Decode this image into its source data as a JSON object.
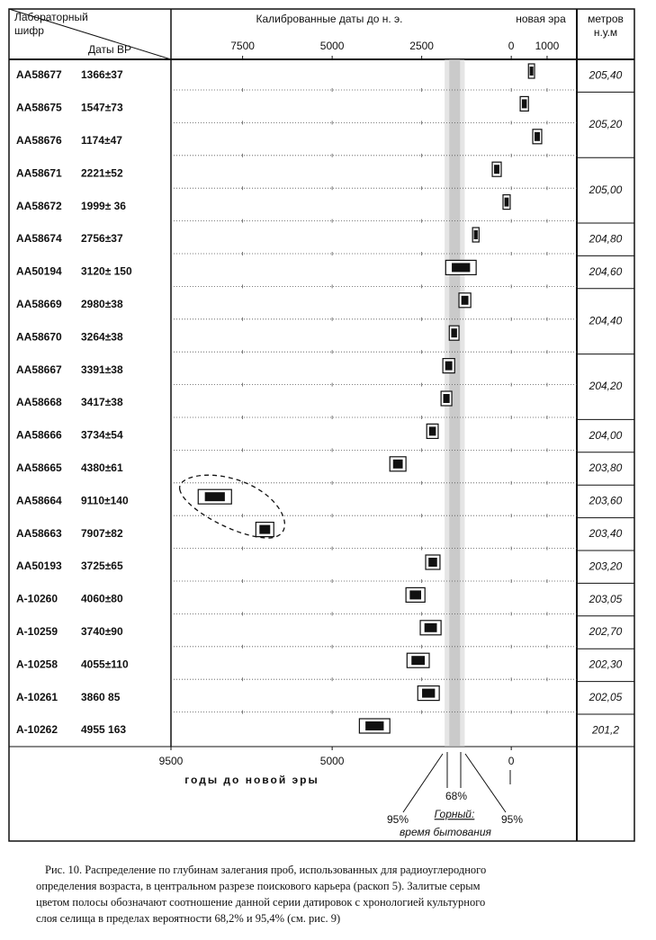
{
  "chart_data": {
    "type": "range",
    "header": {
      "code": "Лабораторный шифр",
      "bp": "Даты ВР",
      "depth": "метров н.у.м"
    },
    "top_axis_label": "Калиброванные даты до н. э.",
    "top_axis_label_2": "новая эра",
    "bottom_axis_label": "годы до новой эры",
    "xlim": [
      9500,
      -1830
    ],
    "xticks": [
      7500,
      5000,
      2500,
      0,
      {
        "value": -1000,
        "label": "1000"
      }
    ],
    "xticks_bottom": [
      9500,
      5000,
      0
    ],
    "bands": [
      {
        "label": "95%",
        "range": [
          1860,
          1300
        ],
        "color": "#d0d0d0"
      },
      {
        "label": "68%",
        "range": [
          1730,
          1430
        ],
        "color": "#b5b5b5"
      }
    ],
    "band_annotation": "Горный:",
    "band_annotation_2": "время бытования",
    "rows": [
      {
        "code": "AA58677",
        "bp": "1366±37",
        "range": [
          -480,
          -650
        ]
      },
      {
        "code": "AA58675",
        "bp": "1547±73",
        "range": [
          -250,
          -480
        ]
      },
      {
        "code": "AA58676",
        "bp": "1174±47",
        "range": [
          -600,
          -850
        ]
      },
      {
        "code": "AA58671",
        "bp": "2221±52",
        "range": [
          530,
          280
        ]
      },
      {
        "code": "AA58672",
        "bp": "1999± 36",
        "range": [
          230,
          30
        ]
      },
      {
        "code": "AA58674",
        "bp": "2756±37",
        "range": [
          1080,
          900
        ]
      },
      {
        "code": "AA50194",
        "bp": "3120± 150",
        "range": [
          1830,
          980
        ]
      },
      {
        "code": "AA58669",
        "bp": "2980±38",
        "range": [
          1460,
          1130
        ]
      },
      {
        "code": "AA58670",
        "bp": "3264±38",
        "range": [
          1730,
          1460
        ]
      },
      {
        "code": "AA58667",
        "bp": "3391±38",
        "range": [
          1910,
          1580
        ]
      },
      {
        "code": "AA58668",
        "bp": "3417±38",
        "range": [
          1960,
          1660
        ]
      },
      {
        "code": "AA58666",
        "bp": "3734±54",
        "range": [
          2360,
          2040
        ]
      },
      {
        "code": "AA58665",
        "bp": "4380±61",
        "range": [
          3390,
          2940
        ]
      },
      {
        "code": "AA58664",
        "bp": "9110±140",
        "range": [
          8740,
          7810
        ]
      },
      {
        "code": "AA58663",
        "bp": "7907±82",
        "range": [
          7130,
          6630
        ]
      },
      {
        "code": "AA50193",
        "bp": "3725±65",
        "range": [
          2390,
          1990
        ]
      },
      {
        "code": "A-10260",
        "bp": "4060±80",
        "range": [
          2940,
          2410
        ]
      },
      {
        "code": "A-10259",
        "bp": "3740±90",
        "range": [
          2540,
          1960
        ]
      },
      {
        "code": "A-10258",
        "bp": "4055±110",
        "range": [
          2910,
          2290
        ]
      },
      {
        "code": "A-10261",
        "bp": "3860 85",
        "range": [
          2610,
          2010
        ]
      },
      {
        "code": "A-10262",
        "bp": "4955 163",
        "range": [
          4240,
          3390
        ]
      }
    ],
    "depths": [
      {
        "label": "205,40",
        "rows": 1
      },
      {
        "label": "205,20",
        "rows": 2
      },
      {
        "label": "205,00",
        "rows": 2
      },
      {
        "label": "204,80",
        "rows": 1
      },
      {
        "label": "204,60",
        "rows": 1
      },
      {
        "label": "204,40",
        "rows": 2
      },
      {
        "label": "204,20",
        "rows": 2
      },
      {
        "label": "204,00",
        "rows": 1
      },
      {
        "label": "203,80",
        "rows": 1
      },
      {
        "label": "203,60",
        "rows": 1
      },
      {
        "label": "203,40",
        "rows": 1
      },
      {
        "label": "203,20",
        "rows": 1
      },
      {
        "label": "203,05",
        "rows": 1
      },
      {
        "label": "202,70",
        "rows": 1
      },
      {
        "label": "202,30",
        "rows": 1
      },
      {
        "label": "202,05",
        "rows": 1
      },
      {
        "label": "201,2",
        "rows": 1
      }
    ],
    "caption": [
      "Рис. 10. Распределение по глубинам залегания проб, использованных для радиоуглеродного",
      "определения возраста, в центральном разрезе поискового карьера (раскоп 5). Залитые серым",
      "цветом полосы обозначают соотношение данной серии датировок с хронологией культурного",
      "слоя селища в пределах вероятности 68,2% и 95,4% (см. рис. 9)"
    ]
  }
}
